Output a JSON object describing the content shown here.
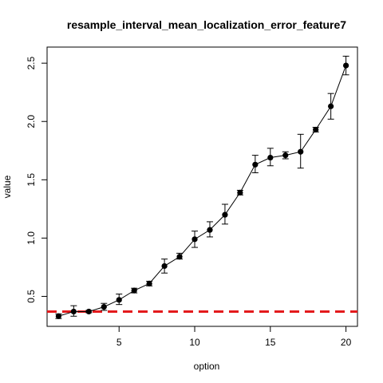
{
  "chart_data": {
    "type": "line",
    "title": "resample_interval_mean_localization_error_feature7",
    "xlabel": "option",
    "ylabel": "value",
    "xlim": [
      0.24,
      20.76
    ],
    "ylim": [
      0.243,
      2.638
    ],
    "x_ticks": [
      5,
      10,
      15,
      20
    ],
    "y_ticks": [
      0.5,
      1.0,
      1.5,
      2.0,
      2.5
    ],
    "x_tick_labels": [
      "5",
      "10",
      "15",
      "20"
    ],
    "y_tick_labels": [
      "0.5",
      "1.0",
      "1.5",
      "2.0",
      "2.5"
    ],
    "grid": false,
    "series": [
      {
        "x": [
          1,
          2,
          3,
          4,
          5,
          6,
          7,
          8,
          9,
          10,
          11,
          12,
          13,
          14,
          15,
          16,
          17,
          18,
          19,
          20
        ],
        "y": [
          0.33,
          0.37,
          0.37,
          0.41,
          0.47,
          0.55,
          0.61,
          0.76,
          0.84,
          0.99,
          1.07,
          1.2,
          1.39,
          1.63,
          1.69,
          1.71,
          1.74,
          1.93,
          2.13,
          2.48
        ],
        "err_low": [
          0.31,
          0.33,
          0.36,
          0.38,
          0.43,
          0.53,
          0.59,
          0.7,
          0.82,
          0.92,
          1.01,
          1.12,
          1.37,
          1.56,
          1.62,
          1.68,
          1.6,
          1.91,
          2.02,
          2.4
        ],
        "err_high": [
          0.35,
          0.42,
          0.38,
          0.44,
          0.52,
          0.57,
          0.63,
          0.82,
          0.87,
          1.06,
          1.14,
          1.29,
          1.41,
          1.71,
          1.77,
          1.74,
          1.89,
          1.95,
          2.24,
          2.56
        ]
      }
    ],
    "reference_line": {
      "y": 0.37,
      "color": "#e31a1c",
      "style": "dashed"
    },
    "colors": {
      "series": "#000000",
      "reference": "#e31a1c"
    }
  }
}
